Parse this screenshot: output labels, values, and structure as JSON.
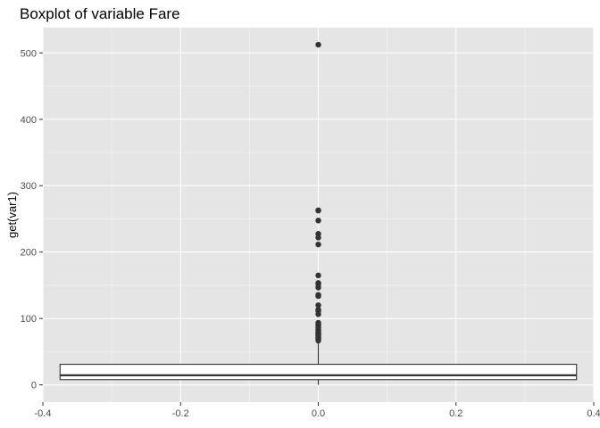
{
  "chart_data": {
    "type": "boxplot",
    "title": "Boxplot of variable Fare",
    "xlabel": "",
    "ylabel": "get(var1)",
    "xlim": [
      -0.4,
      0.4
    ],
    "ylim": [
      -26,
      538
    ],
    "x_ticks": [
      -0.4,
      -0.2,
      0.0,
      0.2,
      0.4
    ],
    "x_tick_labels": [
      "-0.4",
      "-0.2",
      "0.0",
      "0.2",
      "0.4"
    ],
    "y_ticks": [
      0,
      100,
      200,
      300,
      400,
      500
    ],
    "y_tick_labels": [
      "0",
      "100",
      "200",
      "300",
      "400",
      "500"
    ],
    "grid": true,
    "box": {
      "x": 0.0,
      "x_min": -0.375,
      "x_max": 0.375,
      "min": 0,
      "q1": 7.9,
      "median": 14.45,
      "q3": 31.0,
      "whisker_high": 65.0
    },
    "outliers": [
      512.33,
      263.0,
      262.4,
      247.5,
      227.5,
      221.8,
      211.5,
      164.9,
      153.5,
      151.6,
      146.5,
      135.6,
      133.7,
      120.0,
      113.3,
      110.9,
      106.4,
      93.5,
      91.1,
      90.0,
      86.5,
      83.2,
      82.2,
      79.2,
      77.9,
      76.7,
      75.3,
      73.5,
      71.3,
      69.6,
      69.3,
      66.6
    ]
  }
}
